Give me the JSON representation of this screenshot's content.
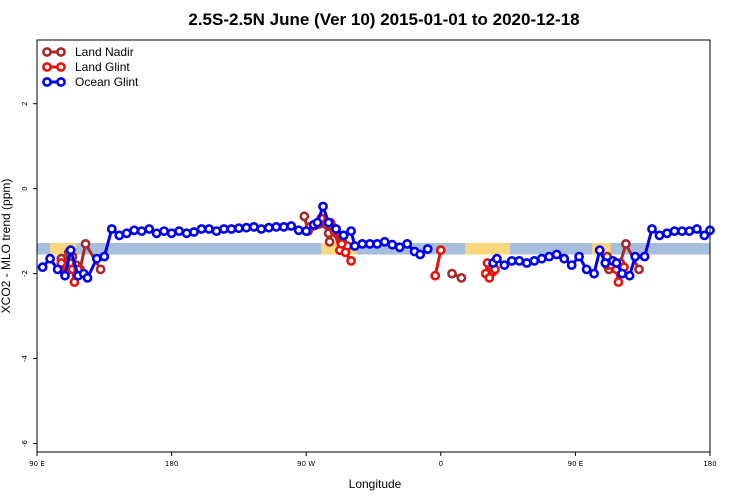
{
  "chart_data": {
    "type": "line",
    "title": "2.5S-2.5N June (Ver 10)   2015-01-01 to 2020-12-18",
    "xlabel": "Longitude",
    "ylabel": "XCO2 - MLO trend (ppm)",
    "xlim": [
      0,
      360
    ],
    "ylim": [
      -6.2,
      3.5
    ],
    "x_ticks": [
      {
        "value": 0,
        "label": "90 E"
      },
      {
        "value": 72,
        "label": "180"
      },
      {
        "value": 144,
        "label": "90 W"
      },
      {
        "value": 216,
        "label": "0"
      },
      {
        "value": 288,
        "label": "90 E"
      },
      {
        "value": 360,
        "label": "180"
      }
    ],
    "y_ticks": [
      {
        "value": 2,
        "label": "2"
      },
      {
        "value": 0,
        "label": "0"
      },
      {
        "value": -2,
        "label": "-2"
      },
      {
        "value": -4,
        "label": "-4"
      },
      {
        "value": -6,
        "label": "-6"
      }
    ],
    "grid": false,
    "legend_position": "top-left",
    "background_band": {
      "ymin": -1.55,
      "ymax": -1.28,
      "ocean_color": "#a7bedf",
      "land_color": "#fad67e",
      "land_ranges": [
        [
          7,
          21
        ],
        [
          152,
          171
        ],
        [
          229,
          253
        ],
        [
          297,
          307
        ]
      ]
    },
    "series": [
      {
        "name": "Land Nadir",
        "color": "#a52a2a",
        "segments": [
          [
            [
              13,
              -1.65
            ],
            [
              15,
              -1.8
            ],
            [
              17,
              -1.5
            ],
            [
              19,
              -1.6
            ],
            [
              21,
              -1.8
            ],
            [
              23,
              -1.9
            ],
            [
              26,
              -1.3
            ],
            [
              34,
              -1.9
            ]
          ],
          [
            [
              143,
              -0.65
            ],
            [
              145,
              -1.0
            ],
            [
              155,
              -0.85
            ],
            [
              156,
              -1.05
            ],
            [
              156.5,
              -1.25
            ],
            [
              158,
              -0.9
            ],
            [
              160,
              -1.05
            ],
            [
              163,
              -1.25
            ],
            [
              164,
              -1.1
            ],
            [
              166,
              -1.35
            ]
          ],
          [
            [
              222,
              -2.0
            ],
            [
              227,
              -2.1
            ]
          ],
          [
            [
              305,
              -1.6
            ],
            [
              306,
              -1.9
            ],
            [
              312,
              -1.75
            ],
            [
              315,
              -1.3
            ],
            [
              322,
              -1.9
            ]
          ]
        ]
      },
      {
        "name": "Land Glint",
        "color": "#e8120c",
        "segments": [
          [
            [
              13,
              -1.75
            ],
            [
              15,
              -2.0
            ],
            [
              17,
              -1.9
            ],
            [
              19,
              -1.9
            ],
            [
              20,
              -2.2
            ],
            [
              22,
              -1.9
            ]
          ],
          [
            [
              146,
              -0.9
            ],
            [
              152,
              -0.7
            ],
            [
              157,
              -0.8
            ],
            [
              159,
              -1.0
            ],
            [
              162,
              -1.45
            ],
            [
              163,
              -1.3
            ],
            [
              165,
              -1.5
            ],
            [
              168,
              -1.7
            ]
          ],
          [
            [
              213,
              -2.05
            ],
            [
              216,
              -1.45
            ]
          ],
          [
            [
              240,
              -2.0
            ],
            [
              241,
              -1.75
            ],
            [
              242,
              -2.1
            ],
            [
              244,
              -1.95
            ],
            [
              245,
              -1.9
            ]
          ],
          [
            [
              305,
              -1.8
            ],
            [
              307,
              -1.8
            ],
            [
              310,
              -1.9
            ],
            [
              311,
              -2.2
            ],
            [
              314,
              -1.85
            ]
          ]
        ]
      },
      {
        "name": "Ocean Glint",
        "color": "#0000ee",
        "segments": [
          [
            [
              3,
              -1.85
            ],
            [
              7,
              -1.65
            ],
            [
              11,
              -1.9
            ],
            [
              15,
              -2.05
            ],
            [
              18,
              -1.45
            ],
            [
              22,
              -2.05
            ],
            [
              25,
              -2.0
            ],
            [
              27,
              -2.1
            ],
            [
              32,
              -1.65
            ],
            [
              36,
              -1.6
            ],
            [
              40,
              -0.95
            ],
            [
              44,
              -1.1
            ],
            [
              48,
              -1.05
            ],
            [
              52,
              -0.98
            ],
            [
              56,
              -1.0
            ],
            [
              60,
              -0.95
            ],
            [
              64,
              -1.05
            ],
            [
              68,
              -1.0
            ],
            [
              72,
              -1.05
            ],
            [
              76,
              -1.0
            ],
            [
              80,
              -1.05
            ],
            [
              84,
              -1.02
            ],
            [
              88,
              -0.95
            ],
            [
              92,
              -0.95
            ],
            [
              96,
              -1.0
            ],
            [
              100,
              -0.95
            ],
            [
              104,
              -0.95
            ],
            [
              108,
              -0.93
            ],
            [
              112,
              -0.92
            ],
            [
              116,
              -0.9
            ],
            [
              120,
              -0.95
            ],
            [
              124,
              -0.92
            ],
            [
              128,
              -0.9
            ],
            [
              132,
              -0.9
            ],
            [
              136,
              -0.88
            ],
            [
              140,
              -0.98
            ],
            [
              144,
              -1.0
            ],
            [
              148,
              -0.85
            ],
            [
              150,
              -0.8
            ],
            [
              153,
              -0.42
            ],
            [
              156,
              -0.8
            ],
            [
              160,
              -0.95
            ],
            [
              164,
              -1.1
            ],
            [
              168,
              -1.0
            ],
            [
              170,
              -1.35
            ],
            [
              174,
              -1.3
            ],
            [
              178,
              -1.3
            ],
            [
              182,
              -1.3
            ],
            [
              186,
              -1.25
            ],
            [
              190,
              -1.32
            ],
            [
              194,
              -1.38
            ],
            [
              198,
              -1.3
            ],
            [
              202,
              -1.48
            ],
            [
              205,
              -1.55
            ],
            [
              209,
              -1.42
            ]
          ],
          [
            [
              244,
              -1.75
            ],
            [
              246,
              -1.65
            ],
            [
              250,
              -1.8
            ],
            [
              254,
              -1.7
            ],
            [
              258,
              -1.7
            ],
            [
              262,
              -1.75
            ],
            [
              266,
              -1.7
            ],
            [
              270,
              -1.65
            ],
            [
              274,
              -1.6
            ],
            [
              278,
              -1.55
            ],
            [
              282,
              -1.65
            ],
            [
              286,
              -1.8
            ],
            [
              290,
              -1.6
            ],
            [
              294,
              -1.9
            ],
            [
              298,
              -2.0
            ],
            [
              301,
              -1.45
            ],
            [
              304,
              -1.75
            ],
            [
              308,
              -1.7
            ],
            [
              310,
              -1.75
            ],
            [
              313,
              -2.0
            ],
            [
              317,
              -2.05
            ],
            [
              320,
              -1.6
            ],
            [
              325,
              -1.6
            ],
            [
              329,
              -0.95
            ],
            [
              333,
              -1.1
            ],
            [
              337,
              -1.05
            ],
            [
              341,
              -1.0
            ],
            [
              345,
              -1.0
            ],
            [
              349,
              -1.0
            ],
            [
              353,
              -0.95
            ],
            [
              357,
              -1.1
            ],
            [
              360,
              -0.98
            ]
          ]
        ]
      }
    ]
  }
}
